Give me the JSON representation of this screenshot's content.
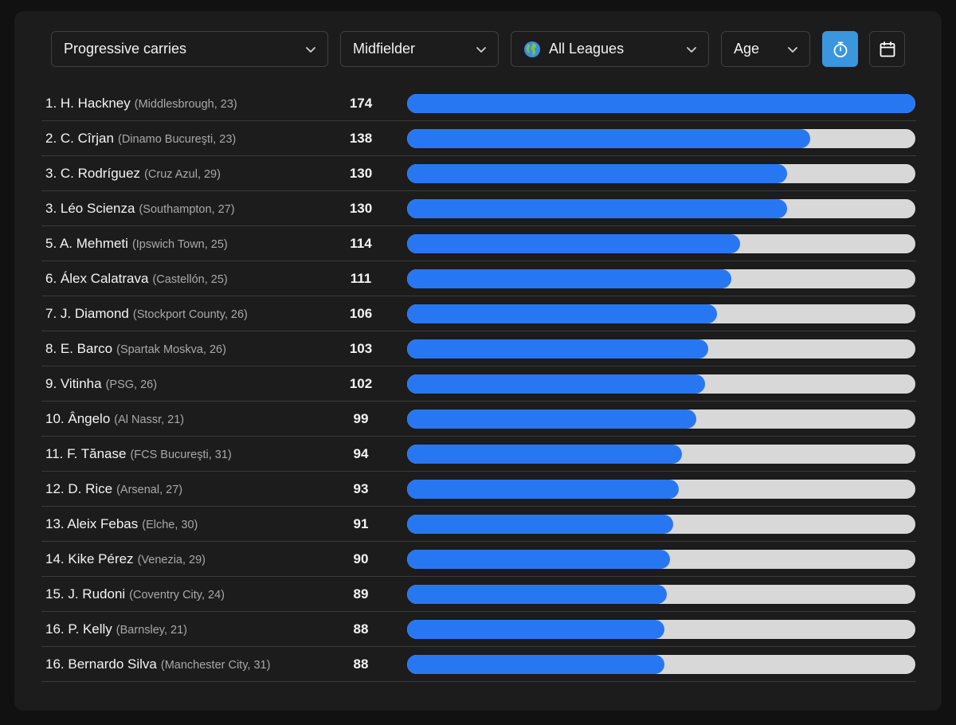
{
  "filters": {
    "metric": "Progressive carries",
    "position": "Midfielder",
    "league": "All Leagues",
    "age": "Age"
  },
  "toolbar_icons": {
    "league_icon": "globe-icon",
    "timer_button_icon": "stopwatch-icon",
    "calendar_button_icon": "calendar-icon",
    "timer_button_color": "#3a96dd"
  },
  "colors": {
    "bar_fill": "#2877f2",
    "bar_track": "#d8d8d8"
  },
  "chart_data": {
    "type": "bar",
    "orientation": "horizontal",
    "max_value": 174,
    "rows": [
      {
        "label": "1. H. Hackney",
        "meta": "(Middlesbrough, 23)",
        "value": 174
      },
      {
        "label": "2. C. Cîrjan",
        "meta": "(Dinamo Bucureşti, 23)",
        "value": 138
      },
      {
        "label": "3. C. Rodríguez",
        "meta": "(Cruz Azul, 29)",
        "value": 130
      },
      {
        "label": "3. Léo Scienza",
        "meta": "(Southampton, 27)",
        "value": 130
      },
      {
        "label": "5. A. Mehmeti",
        "meta": "(Ipswich Town, 25)",
        "value": 114
      },
      {
        "label": "6. Álex Calatrava",
        "meta": "(Castellón, 25)",
        "value": 111
      },
      {
        "label": "7. J. Diamond",
        "meta": "(Stockport County, 26)",
        "value": 106
      },
      {
        "label": "8. E. Barco",
        "meta": "(Spartak Moskva, 26)",
        "value": 103
      },
      {
        "label": "9. Vitinha",
        "meta": "(PSG, 26)",
        "value": 102
      },
      {
        "label": "10. Ângelo",
        "meta": "(Al Nassr, 21)",
        "value": 99
      },
      {
        "label": "11. F. Tănase",
        "meta": "(FCS Bucureşti, 31)",
        "value": 94
      },
      {
        "label": "12. D. Rice",
        "meta": "(Arsenal, 27)",
        "value": 93
      },
      {
        "label": "13. Aleix Febas",
        "meta": "(Elche, 30)",
        "value": 91
      },
      {
        "label": "14. Kike Pérez",
        "meta": "(Venezia, 29)",
        "value": 90
      },
      {
        "label": "15. J. Rudoni",
        "meta": "(Coventry City, 24)",
        "value": 89
      },
      {
        "label": "16. P. Kelly",
        "meta": "(Barnsley, 21)",
        "value": 88
      },
      {
        "label": "16. Bernardo Silva",
        "meta": "(Manchester City, 31)",
        "value": 88
      }
    ]
  }
}
